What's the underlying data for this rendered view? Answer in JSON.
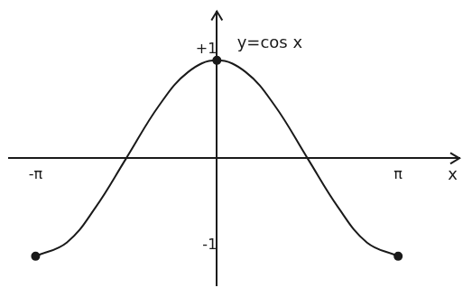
{
  "chart_data": {
    "type": "line",
    "annotation": "y=cos x",
    "x_label": "x",
    "x": [
      -3.14,
      -2.6,
      -2.1,
      -1.57,
      -1.0,
      -0.5,
      0,
      0.5,
      1.0,
      1.57,
      2.1,
      2.6,
      3.14
    ],
    "values": [
      -1,
      -0.86,
      -0.5,
      0,
      0.54,
      0.88,
      1,
      0.88,
      0.54,
      0,
      -0.5,
      -0.86,
      -1
    ],
    "color": "#1a1a1a",
    "marker": "circle",
    "xlim": [
      -3.6,
      4.2
    ],
    "xticks": [
      {
        "value": -3.14,
        "label": "-π"
      },
      {
        "value": 3.14,
        "label": "π"
      }
    ],
    "ylim": [
      -1.3,
      1.5
    ],
    "yticks": [
      {
        "value": 1,
        "label": "+1"
      },
      {
        "value": -1,
        "label": "-1"
      }
    ],
    "grid": false
  }
}
